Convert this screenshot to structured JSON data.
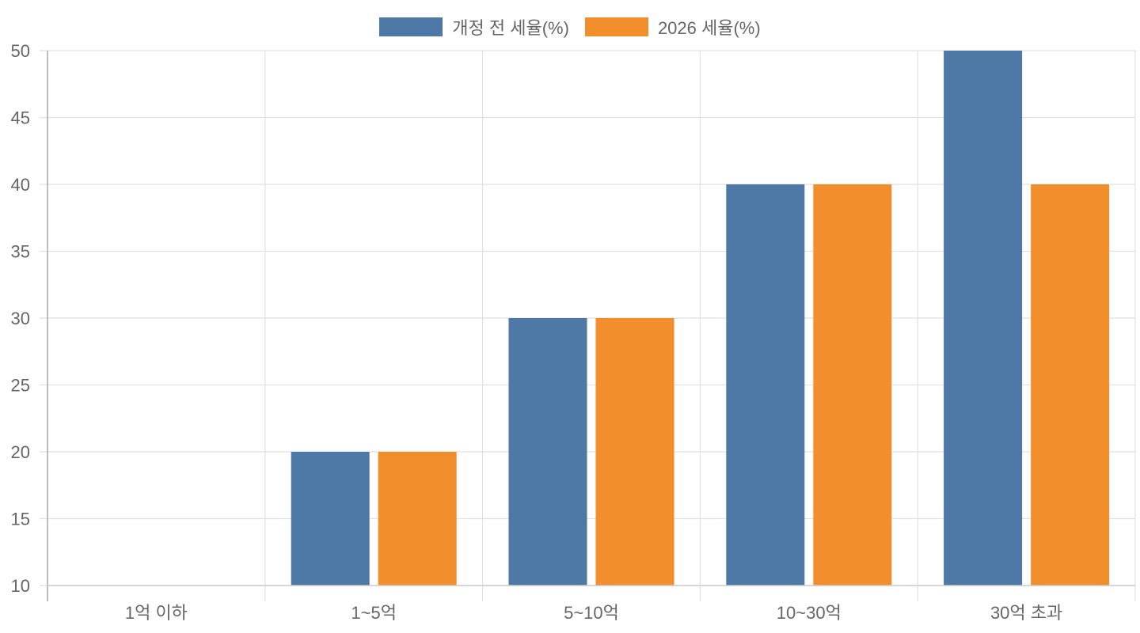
{
  "chart_data": {
    "type": "bar",
    "title": "",
    "xlabel": "",
    "ylabel": "",
    "categories": [
      "1억 이하",
      "1~5억",
      "5~10억",
      "10~30억",
      "30억 초과"
    ],
    "series": [
      {
        "name": "개정 전 세율(%)",
        "color": "#4e79a7",
        "values": [
          10,
          20,
          30,
          40,
          50
        ]
      },
      {
        "name": "2026 세율(%)",
        "color": "#f28e2b",
        "values": [
          10,
          20,
          30,
          40,
          40
        ]
      }
    ],
    "ylim": [
      10,
      50
    ],
    "yticks": [
      10,
      15,
      20,
      25,
      30,
      35,
      40,
      45,
      50
    ],
    "grid": true,
    "legend_position": "top"
  }
}
